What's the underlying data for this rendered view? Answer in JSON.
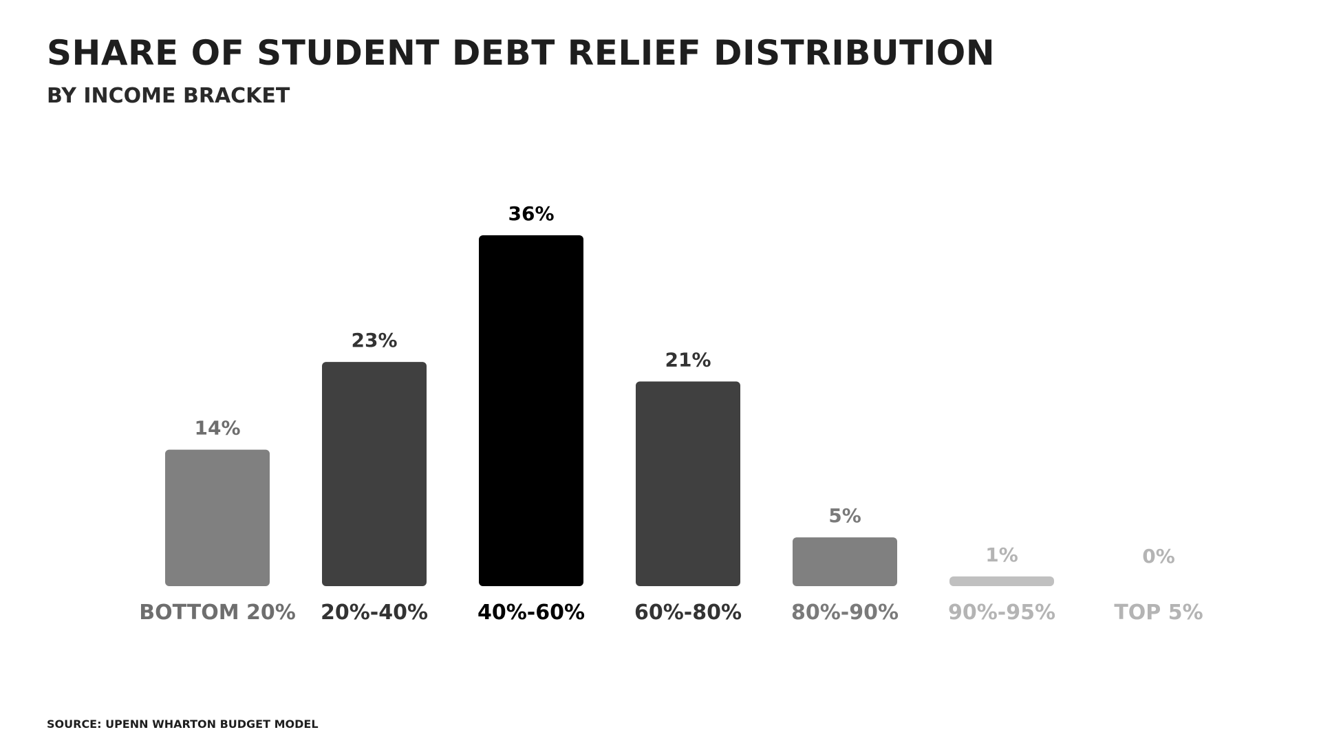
{
  "title": "SHARE OF STUDENT DEBT RELIEF DISTRIBUTION",
  "subtitle": "BY INCOME BRACKET",
  "source": "SOURCE: UPENN WHARTON BUDGET MODEL",
  "chart_data": {
    "type": "bar",
    "title": "SHARE OF STUDENT DEBT RELIEF DISTRIBUTION",
    "subtitle": "BY INCOME BRACKET",
    "xlabel": "",
    "ylabel": "",
    "ylim": [
      0,
      36
    ],
    "grid": false,
    "categories": [
      "BOTTOM 20%",
      "20%-40%",
      "40%-60%",
      "60%-80%",
      "80%-90%",
      "90%-95%",
      "TOP 5%"
    ],
    "values": [
      14,
      23,
      36,
      21,
      5,
      1,
      0
    ],
    "value_labels": [
      "14%",
      "23%",
      "36%",
      "21%",
      "5%",
      "1%",
      "0%"
    ],
    "bar_colors": [
      "#808080",
      "#404040",
      "#000000",
      "#404040",
      "#808080",
      "#c0c0c0",
      "#c0c0c0"
    ],
    "label_colors": [
      "#6e6e6e",
      "#333333",
      "#000000",
      "#333333",
      "#7a7a7a",
      "#b4b4b4",
      "#b4b4b4"
    ]
  }
}
